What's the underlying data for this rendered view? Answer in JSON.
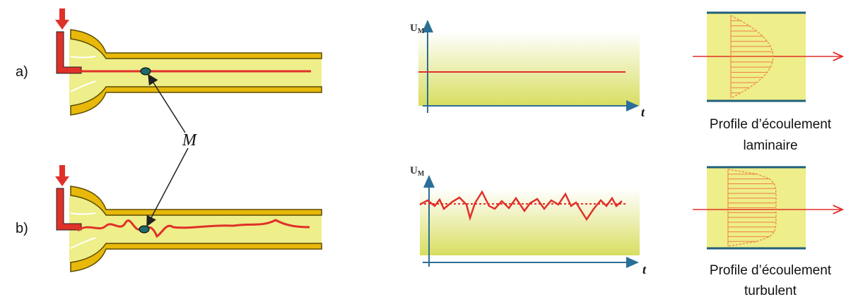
{
  "case_a": {
    "label": "a)",
    "graph": {
      "y_axis": {
        "main": "U",
        "sub": "M"
      },
      "x_axis": "t"
    },
    "profile": {
      "lines": [
        "Profile d’écoulement",
        "laminaire"
      ]
    }
  },
  "case_b": {
    "label": "b)",
    "graph": {
      "y_axis": {
        "main": "U",
        "sub": "M"
      },
      "x_axis": "t"
    },
    "profile": {
      "lines": [
        "Profile d’écoulement",
        "turbulent"
      ]
    }
  },
  "point_label": "M"
}
